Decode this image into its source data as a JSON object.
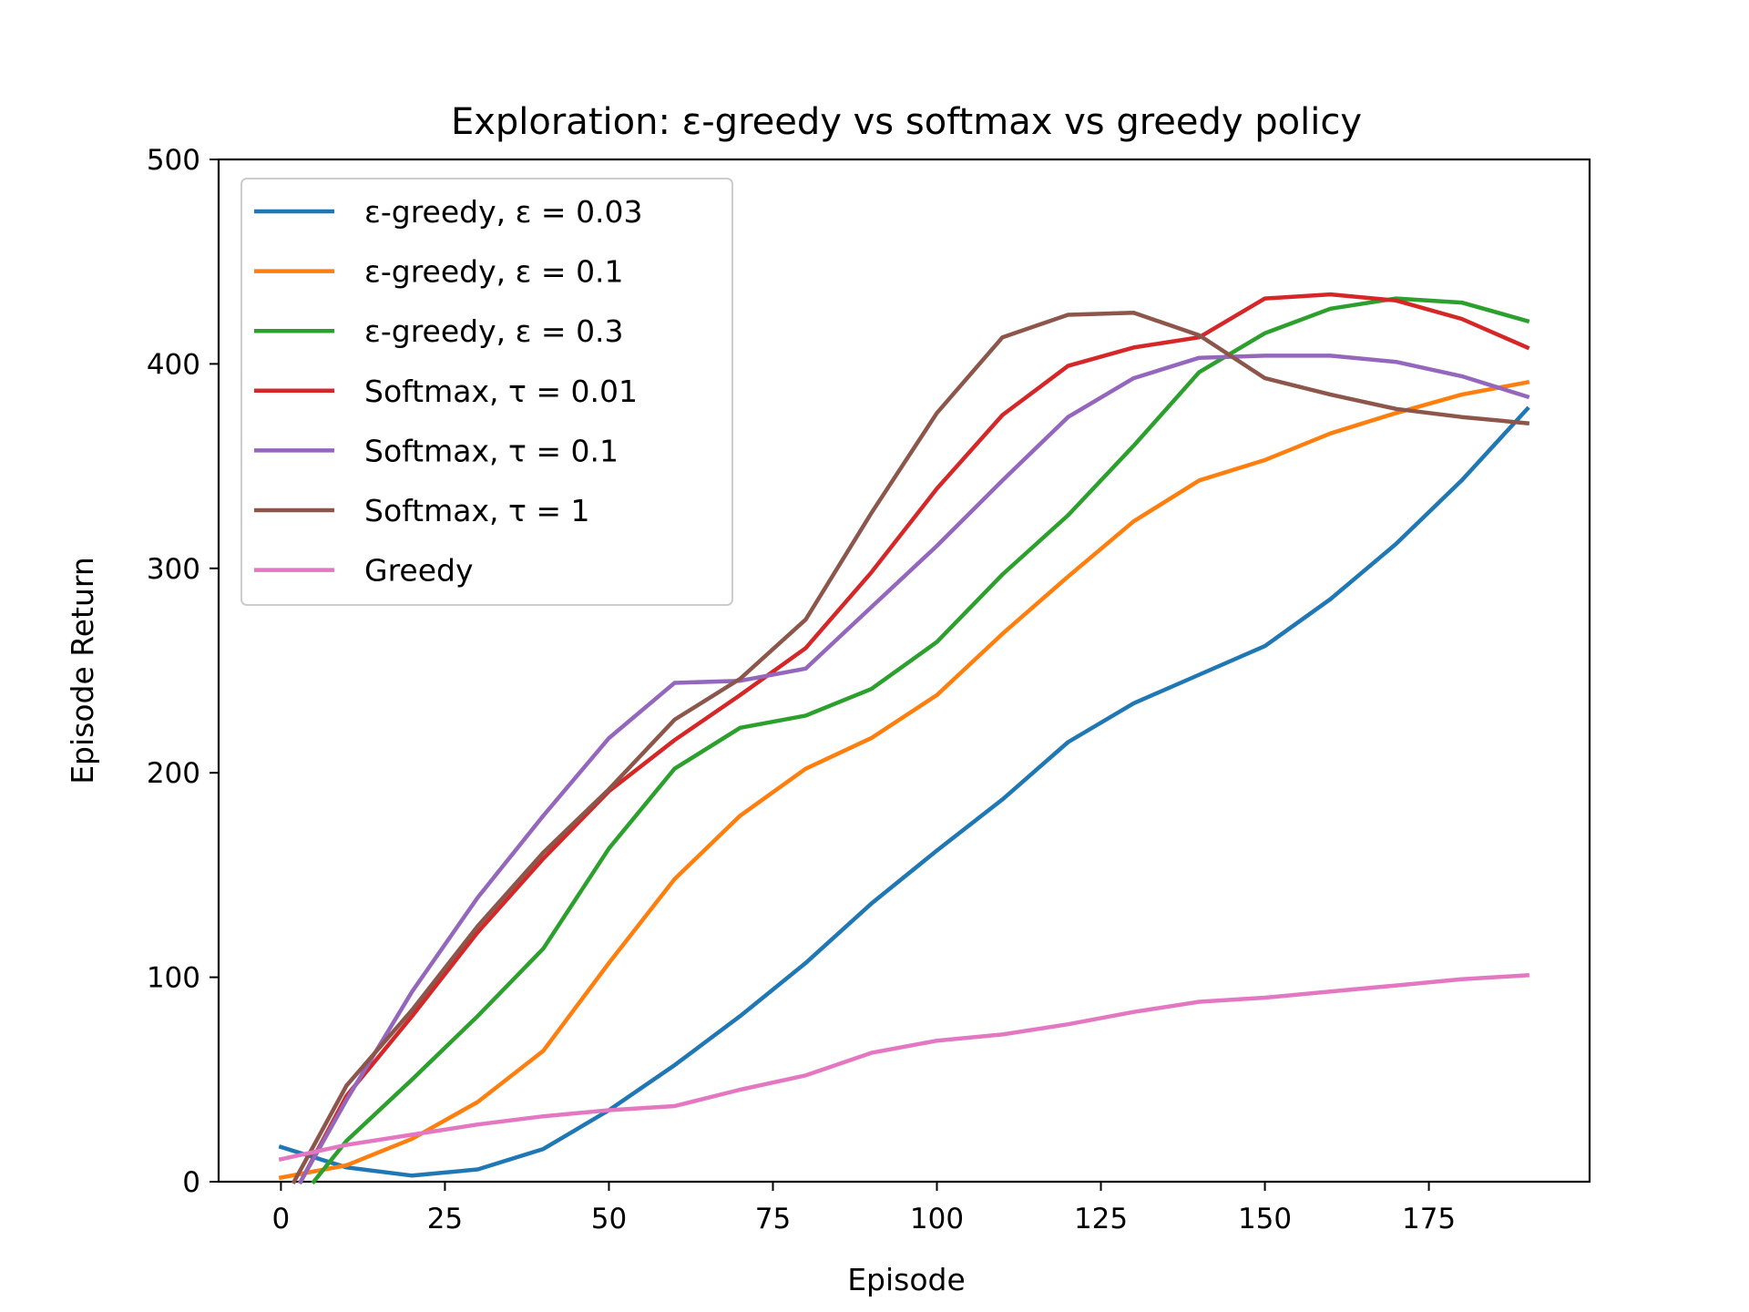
{
  "chart_data": {
    "type": "line",
    "title": "Exploration: ε-greedy vs softmax vs greedy policy",
    "xlabel": "Episode",
    "ylabel": "Episode Return",
    "xlim": [
      -9.5,
      199.5
    ],
    "ylim": [
      0,
      500
    ],
    "xticks": [
      "0",
      "25",
      "50",
      "75",
      "100",
      "125",
      "150",
      "175"
    ],
    "xtick_values": [
      0,
      25,
      50,
      75,
      100,
      125,
      150,
      175
    ],
    "yticks": [
      "0",
      "100",
      "200",
      "300",
      "400",
      "500"
    ],
    "ytick_values": [
      0,
      100,
      200,
      300,
      400,
      500
    ],
    "grid": false,
    "legend_position": "top-left",
    "x": [
      0,
      10,
      20,
      30,
      40,
      50,
      60,
      70,
      80,
      90,
      100,
      110,
      120,
      130,
      140,
      150,
      160,
      170,
      180,
      190
    ],
    "series": [
      {
        "name": "ε-greedy, ε = 0.03",
        "color": "#1f77b4",
        "points": [
          [
            0,
            17
          ],
          [
            10,
            7
          ],
          [
            20,
            3
          ],
          [
            30,
            6
          ],
          [
            40,
            16
          ],
          [
            50,
            35
          ],
          [
            60,
            57
          ],
          [
            70,
            81
          ],
          [
            80,
            107
          ],
          [
            90,
            136
          ],
          [
            100,
            162
          ],
          [
            110,
            187
          ],
          [
            120,
            215
          ],
          [
            130,
            234
          ],
          [
            140,
            248
          ],
          [
            150,
            262
          ],
          [
            160,
            285
          ],
          [
            170,
            312
          ],
          [
            180,
            343
          ],
          [
            190,
            378
          ]
        ]
      },
      {
        "name": "ε-greedy, ε = 0.1",
        "color": "#ff7f0e",
        "points": [
          [
            0,
            2
          ],
          [
            10,
            8
          ],
          [
            20,
            21
          ],
          [
            30,
            39
          ],
          [
            40,
            64
          ],
          [
            50,
            107
          ],
          [
            60,
            148
          ],
          [
            70,
            179
          ],
          [
            80,
            202
          ],
          [
            90,
            217
          ],
          [
            100,
            238
          ],
          [
            110,
            268
          ],
          [
            120,
            296
          ],
          [
            130,
            323
          ],
          [
            140,
            343
          ],
          [
            150,
            353
          ],
          [
            160,
            366
          ],
          [
            170,
            376
          ],
          [
            180,
            385
          ],
          [
            190,
            391
          ]
        ]
      },
      {
        "name": "ε-greedy, ε = 0.3",
        "color": "#2ca02c",
        "points": [
          [
            5,
            0
          ],
          [
            10,
            20
          ],
          [
            20,
            50
          ],
          [
            30,
            81
          ],
          [
            40,
            114
          ],
          [
            50,
            163
          ],
          [
            60,
            202
          ],
          [
            70,
            222
          ],
          [
            80,
            228
          ],
          [
            90,
            241
          ],
          [
            100,
            264
          ],
          [
            110,
            297
          ],
          [
            120,
            326
          ],
          [
            130,
            360
          ],
          [
            140,
            396
          ],
          [
            150,
            415
          ],
          [
            160,
            427
          ],
          [
            170,
            432
          ],
          [
            180,
            430
          ],
          [
            190,
            421
          ]
        ]
      },
      {
        "name": "Softmax, τ = 0.01",
        "color": "#d62728",
        "points": [
          [
            3,
            0
          ],
          [
            10,
            42
          ],
          [
            20,
            81
          ],
          [
            30,
            122
          ],
          [
            40,
            158
          ],
          [
            50,
            191
          ],
          [
            60,
            216
          ],
          [
            70,
            238
          ],
          [
            80,
            261
          ],
          [
            90,
            298
          ],
          [
            100,
            339
          ],
          [
            110,
            375
          ],
          [
            120,
            399
          ],
          [
            130,
            408
          ],
          [
            140,
            413
          ],
          [
            150,
            432
          ],
          [
            160,
            434
          ],
          [
            170,
            431
          ],
          [
            180,
            422
          ],
          [
            190,
            408
          ]
        ]
      },
      {
        "name": "Softmax, τ = 0.1",
        "color": "#9467bd",
        "points": [
          [
            3,
            0
          ],
          [
            10,
            40
          ],
          [
            20,
            93
          ],
          [
            30,
            139
          ],
          [
            40,
            179
          ],
          [
            50,
            217
          ],
          [
            60,
            244
          ],
          [
            70,
            245
          ],
          [
            80,
            251
          ],
          [
            90,
            281
          ],
          [
            100,
            311
          ],
          [
            110,
            343
          ],
          [
            120,
            374
          ],
          [
            130,
            393
          ],
          [
            140,
            403
          ],
          [
            150,
            404
          ],
          [
            160,
            404
          ],
          [
            170,
            401
          ],
          [
            180,
            394
          ],
          [
            190,
            384
          ]
        ]
      },
      {
        "name": "Softmax, τ = 1",
        "color": "#8c564b",
        "points": [
          [
            2,
            0
          ],
          [
            10,
            47
          ],
          [
            20,
            84
          ],
          [
            30,
            125
          ],
          [
            40,
            161
          ],
          [
            50,
            192
          ],
          [
            60,
            226
          ],
          [
            70,
            246
          ],
          [
            80,
            275
          ],
          [
            90,
            327
          ],
          [
            100,
            376
          ],
          [
            110,
            413
          ],
          [
            120,
            424
          ],
          [
            130,
            425
          ],
          [
            140,
            414
          ],
          [
            150,
            393
          ],
          [
            160,
            385
          ],
          [
            170,
            378
          ],
          [
            180,
            374
          ],
          [
            190,
            371
          ]
        ]
      },
      {
        "name": "Greedy",
        "color": "#e377c2",
        "points": [
          [
            0,
            11
          ],
          [
            10,
            18
          ],
          [
            20,
            23
          ],
          [
            30,
            28
          ],
          [
            40,
            32
          ],
          [
            50,
            35
          ],
          [
            60,
            37
          ],
          [
            70,
            45
          ],
          [
            80,
            52
          ],
          [
            90,
            63
          ],
          [
            100,
            69
          ],
          [
            110,
            72
          ],
          [
            120,
            77
          ],
          [
            130,
            83
          ],
          [
            140,
            88
          ],
          [
            150,
            90
          ],
          [
            160,
            93
          ],
          [
            170,
            96
          ],
          [
            180,
            99
          ],
          [
            190,
            101
          ]
        ]
      }
    ]
  }
}
